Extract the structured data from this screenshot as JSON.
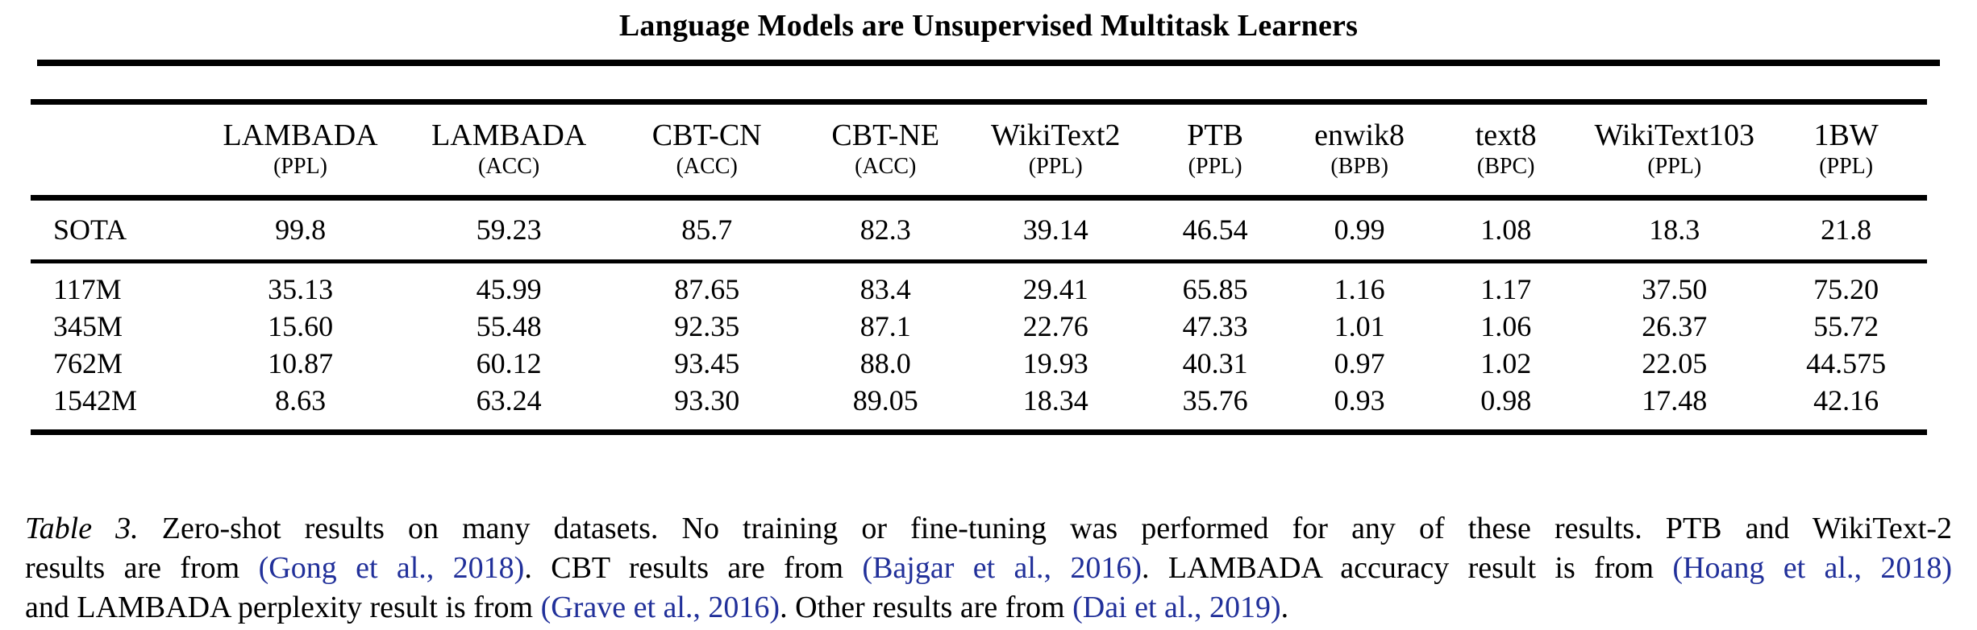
{
  "header": {
    "running_title": "Language Models are Unsupervised Multitask Learners"
  },
  "table": {
    "columns": [
      {
        "label": "LAMBADA",
        "unit": "(PPL)"
      },
      {
        "label": "LAMBADA",
        "unit": "(ACC)"
      },
      {
        "label": "CBT-CN",
        "unit": "(ACC)"
      },
      {
        "label": "CBT-NE",
        "unit": "(ACC)"
      },
      {
        "label": "WikiText2",
        "unit": "(PPL)"
      },
      {
        "label": "PTB",
        "unit": "(PPL)"
      },
      {
        "label": "enwik8",
        "unit": "(BPB)"
      },
      {
        "label": "text8",
        "unit": "(BPC)"
      },
      {
        "label": "WikiText103",
        "unit": "(PPL)"
      },
      {
        "label": "1BW",
        "unit": "(PPL)"
      }
    ],
    "col_widths_pct": [
      8.8,
      10.85,
      11.14,
      9.74,
      9.1,
      8.84,
      7.99,
      7.23,
      8.21,
      9.57,
      8.53
    ],
    "sota_row": {
      "label": "SOTA",
      "values": [
        "99.8",
        "59.23",
        "85.7",
        "82.3",
        "39.14",
        "46.54",
        "0.99",
        "1.08",
        "18.3",
        "21.8"
      ],
      "bold": [
        0,
        0,
        0,
        0,
        0,
        0,
        0,
        0,
        0,
        1
      ]
    },
    "model_rows": [
      {
        "label": "117M",
        "values": [
          "35.13",
          "45.99",
          "87.65",
          "83.4",
          "29.41",
          "65.85",
          "1.16",
          "1.17",
          "37.50",
          "75.20"
        ],
        "bold": [
          1,
          0,
          1,
          1,
          1,
          0,
          0,
          0,
          0,
          0
        ]
      },
      {
        "label": "345M",
        "values": [
          "15.60",
          "55.48",
          "92.35",
          "87.1",
          "22.76",
          "47.33",
          "1.01",
          "1.06",
          "26.37",
          "55.72"
        ],
        "bold": [
          1,
          0,
          1,
          1,
          1,
          0,
          0,
          1,
          0,
          0
        ]
      },
      {
        "label": "762M",
        "values": [
          "10.87",
          "60.12",
          "93.45",
          "88.0",
          "19.93",
          "40.31",
          "0.97",
          "1.02",
          "22.05",
          "44.575"
        ],
        "bold": [
          1,
          1,
          1,
          1,
          1,
          1,
          1,
          1,
          0,
          0
        ]
      },
      {
        "label": "1542M",
        "values": [
          "8.63",
          "63.24",
          "93.30",
          "89.05",
          "18.34",
          "35.76",
          "0.93",
          "0.98",
          "17.48",
          "42.16"
        ],
        "bold": [
          1,
          1,
          1,
          1,
          1,
          1,
          1,
          1,
          1,
          0
        ]
      }
    ]
  },
  "caption": {
    "lines": [
      [
        {
          "text": "Table 3.",
          "style": "label"
        },
        {
          "text": " Zero-shot results on many datasets.  No training or fine-tuning was performed for any of these results.  PTB and WikiText-2",
          "style": "plain"
        }
      ],
      [
        {
          "text": "results are from ",
          "style": "plain"
        },
        {
          "text": "(Gong et al., 2018)",
          "style": "cite"
        },
        {
          "text": ". CBT results are from ",
          "style": "plain"
        },
        {
          "text": "(Bajgar et al., 2016)",
          "style": "cite"
        },
        {
          "text": ". LAMBADA accuracy result is from ",
          "style": "plain"
        },
        {
          "text": "(Hoang et al., 2018)",
          "style": "cite"
        }
      ],
      [
        {
          "text": "and LAMBADA perplexity result is from ",
          "style": "plain"
        },
        {
          "text": "(Grave et al., 2016)",
          "style": "cite"
        },
        {
          "text": ". Other results are from ",
          "style": "plain"
        },
        {
          "text": "(Dai et al., 2019)",
          "style": "cite"
        },
        {
          "text": ".",
          "style": "plain"
        }
      ]
    ]
  },
  "colors": {
    "text": "#000000",
    "citation": "#21309a",
    "rule": "#000000",
    "background": "#ffffff"
  }
}
